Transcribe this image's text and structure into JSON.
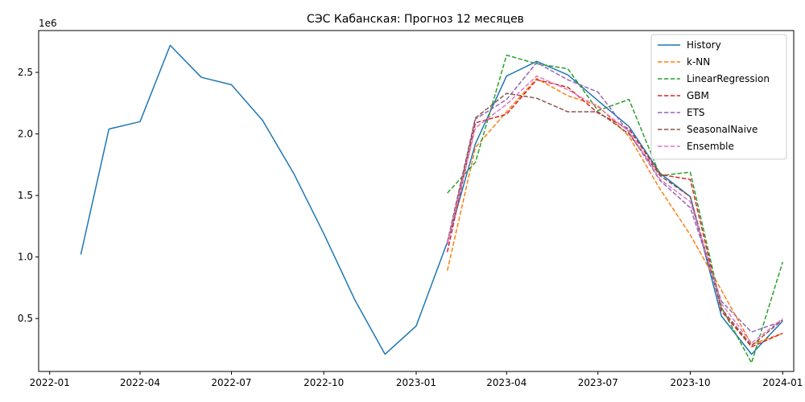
{
  "chart_data": {
    "type": "line",
    "title": "СЭС Кабанская: Прогноз 12 месяцев",
    "xlabel": "",
    "ylabel": "",
    "y_offset_label": "1e6",
    "y_multiplier": 1000000,
    "xlim": [
      "2021-12-21",
      "2024-01-12"
    ],
    "ylim": [
      0.07,
      2.84
    ],
    "x_ticks": [
      "2022-01-01",
      "2022-04-01",
      "2022-07-01",
      "2022-10-01",
      "2023-01-01",
      "2023-04-01",
      "2023-07-01",
      "2023-10-01",
      "2024-01-01"
    ],
    "x_tick_labels": [
      "2022-01",
      "2022-04",
      "2022-07",
      "2022-10",
      "2023-01",
      "2023-04",
      "2023-07",
      "2023-10",
      "2024-01"
    ],
    "y_ticks": [
      0.5,
      1.0,
      1.5,
      2.0,
      2.5
    ],
    "y_tick_labels": [
      "0.5",
      "1.0",
      "1.5",
      "2.0",
      "2.5"
    ],
    "grid": false,
    "legend_position": "top-right",
    "series": [
      {
        "name": "History",
        "color": "#1f77b4",
        "dashed": false,
        "x": [
          "2022-02-01",
          "2022-03-01",
          "2022-04-01",
          "2022-05-01",
          "2022-06-01",
          "2022-07-01",
          "2022-08-01",
          "2022-09-01",
          "2022-10-01",
          "2022-11-01",
          "2022-12-01",
          "2023-01-01",
          "2023-02-01",
          "2023-03-01",
          "2023-04-01",
          "2023-05-01",
          "2023-06-01",
          "2023-07-01",
          "2023-08-01",
          "2023-09-01",
          "2023-10-01",
          "2023-11-01",
          "2023-12-01",
          "2024-01-01"
        ],
        "y": [
          1.02,
          2.04,
          2.1,
          2.72,
          2.46,
          2.4,
          2.11,
          1.68,
          1.19,
          0.65,
          0.21,
          0.44,
          1.12,
          1.92,
          2.47,
          2.59,
          2.48,
          2.27,
          2.06,
          1.68,
          1.49,
          0.52,
          0.21,
          0.48
        ]
      },
      {
        "name": "k-NN",
        "color": "#ff7f0e",
        "dashed": true,
        "x": [
          "2023-02-01",
          "2023-03-01",
          "2023-04-01",
          "2023-05-01",
          "2023-06-01",
          "2023-07-01",
          "2023-08-01",
          "2023-09-01",
          "2023-10-01",
          "2023-11-01",
          "2023-12-01",
          "2024-01-01"
        ],
        "y": [
          0.89,
          1.89,
          2.18,
          2.45,
          2.31,
          2.23,
          1.98,
          1.55,
          1.18,
          0.73,
          0.29,
          0.38
        ]
      },
      {
        "name": "LinearRegression",
        "color": "#2ca02c",
        "dashed": true,
        "x": [
          "2023-02-01",
          "2023-03-01",
          "2023-04-01",
          "2023-05-01",
          "2023-06-01",
          "2023-07-01",
          "2023-08-01",
          "2023-09-01",
          "2023-10-01",
          "2023-11-01",
          "2023-12-01",
          "2024-01-01"
        ],
        "y": [
          1.52,
          1.77,
          2.64,
          2.57,
          2.53,
          2.19,
          2.28,
          1.66,
          1.69,
          0.59,
          0.14,
          0.96
        ]
      },
      {
        "name": "GBM",
        "color": "#d62728",
        "dashed": true,
        "x": [
          "2023-02-01",
          "2023-03-01",
          "2023-04-01",
          "2023-05-01",
          "2023-06-01",
          "2023-07-01",
          "2023-08-01",
          "2023-09-01",
          "2023-10-01",
          "2023-11-01",
          "2023-12-01",
          "2024-01-01"
        ],
        "y": [
          1.04,
          2.09,
          2.16,
          2.44,
          2.38,
          2.17,
          2.04,
          1.67,
          1.63,
          0.56,
          0.27,
          0.38
        ]
      },
      {
        "name": "ETS",
        "color": "#9467bd",
        "dashed": true,
        "x": [
          "2023-02-01",
          "2023-03-01",
          "2023-04-01",
          "2023-05-01",
          "2023-06-01",
          "2023-07-01",
          "2023-08-01",
          "2023-09-01",
          "2023-10-01",
          "2023-11-01",
          "2023-12-01",
          "2024-01-01"
        ],
        "y": [
          1.1,
          2.12,
          2.28,
          2.58,
          2.44,
          2.34,
          2.01,
          1.62,
          1.4,
          0.64,
          0.39,
          0.48
        ]
      },
      {
        "name": "SeasonalNaive",
        "color": "#8c564b",
        "dashed": true,
        "x": [
          "2023-02-01",
          "2023-03-01",
          "2023-04-01",
          "2023-05-01",
          "2023-06-01",
          "2023-07-01",
          "2023-08-01",
          "2023-09-01",
          "2023-10-01",
          "2023-11-01",
          "2023-12-01",
          "2024-01-01"
        ],
        "y": [
          1.12,
          2.13,
          2.33,
          2.29,
          2.18,
          2.18,
          2.0,
          1.66,
          1.49,
          0.58,
          0.28,
          0.49
        ]
      },
      {
        "name": "Ensemble",
        "color": "#e377c2",
        "dashed": true,
        "x": [
          "2023-02-01",
          "2023-03-01",
          "2023-04-01",
          "2023-05-01",
          "2023-06-01",
          "2023-07-01",
          "2023-08-01",
          "2023-09-01",
          "2023-10-01",
          "2023-11-01",
          "2023-12-01",
          "2024-01-01"
        ],
        "y": [
          1.11,
          2.05,
          2.24,
          2.47,
          2.36,
          2.22,
          2.02,
          1.63,
          1.45,
          0.62,
          0.3,
          0.5
        ]
      }
    ]
  }
}
